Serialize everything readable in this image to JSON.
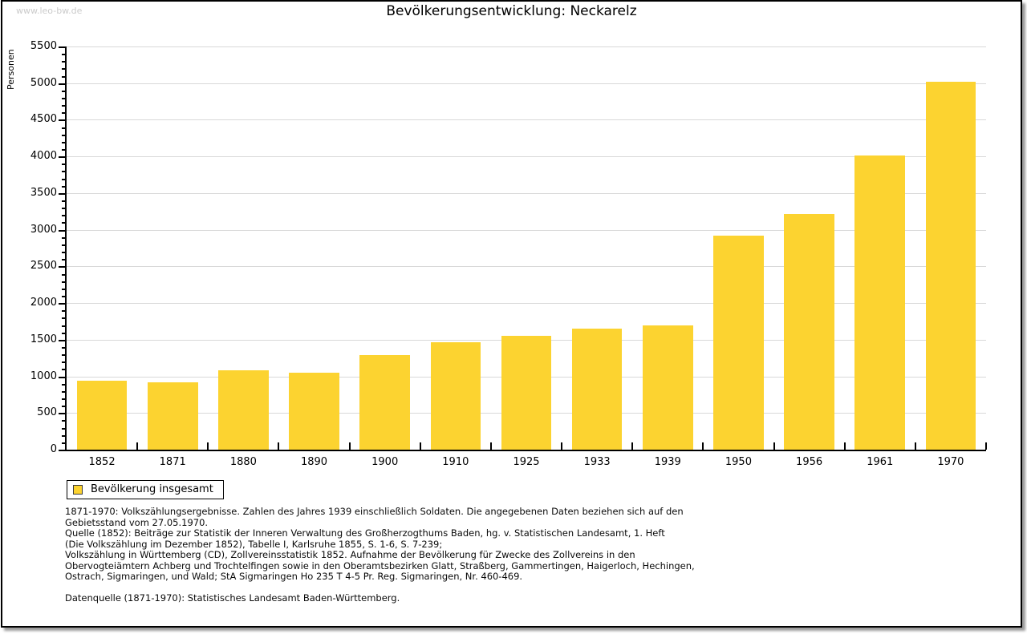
{
  "watermark": "www.leo-bw.de",
  "header": {
    "title": "Bevölkerungsentwicklung: Neckarelz"
  },
  "chart_data": {
    "type": "bar",
    "title": "Bevölkerungsentwicklung: Neckarelz",
    "xlabel": "",
    "ylabel": "Personen",
    "categories": [
      "1852",
      "1871",
      "1880",
      "1890",
      "1900",
      "1910",
      "1925",
      "1933",
      "1939",
      "1950",
      "1956",
      "1961",
      "1970"
    ],
    "values": [
      935,
      915,
      1085,
      1045,
      1290,
      1460,
      1555,
      1650,
      1690,
      2920,
      3220,
      4010,
      5020
    ],
    "ylim": [
      0,
      5500
    ],
    "ytick_step": 500,
    "y_minor_step": 100,
    "grid": true,
    "bar_color": "#fcd330",
    "legend_position": "bottom-left"
  },
  "legend": {
    "label": "Bevölkerung insgesamt"
  },
  "footnotes": {
    "lines": [
      "1871-1970: Volkszählungsergebnisse. Zahlen des Jahres 1939 einschließlich Soldaten. Die angegebenen Daten beziehen sich auf den",
      "Gebietsstand vom 27.05.1970.",
      "Quelle (1852): Beiträge zur Statistik der Inneren Verwaltung des Großherzogthums Baden, hg. v. Statistischen Landesamt, 1. Heft",
      "(Die Volkszählung im Dezember 1852), Tabelle I, Karlsruhe 1855, S. 1-6, S. 7-239;",
      "Volkszählung in Württemberg (CD), Zollvereinsstatistik 1852. Aufnahme der Bevölkerung für Zwecke des Zollvereins in den",
      "Obervogteiämtern Achberg und Trochtelfingen sowie in den Oberamtsbezirken Glatt, Straßberg, Gammertingen, Haigerloch, Hechingen,",
      "Ostrach, Sigmaringen, und Wald; StA Sigmaringen Ho 235 T 4-5 Pr. Reg. Sigmaringen, Nr. 460-469."
    ],
    "datasource": "Datenquelle (1871-1970): Statistisches Landesamt Baden-Württemberg."
  },
  "colors": {
    "bar": "#fcd330",
    "gridline": "#d9d9d9",
    "axis": "#000000",
    "watermark": "#cbcbcb",
    "frame_shadow": "#9a9a9a"
  }
}
